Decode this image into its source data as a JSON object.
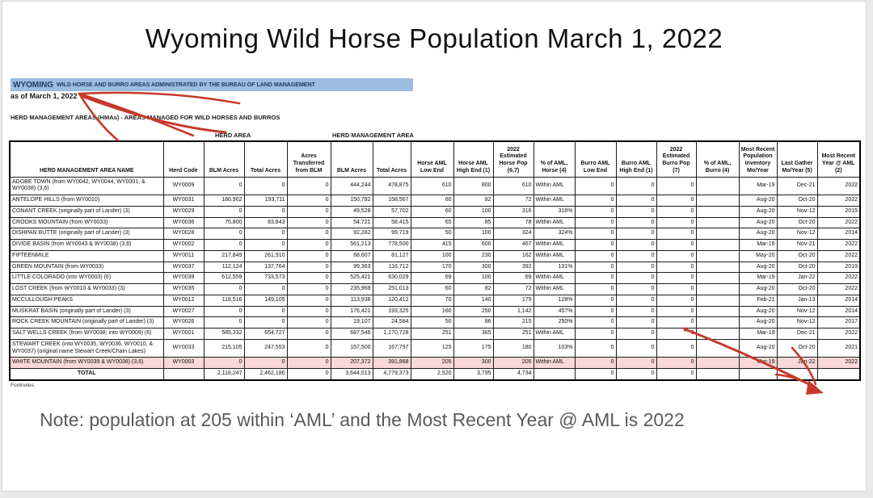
{
  "title": "Wyoming Wild Horse Population March 1, 2022",
  "header_bar": {
    "state": "WYOMING",
    "text": "WILD HORSE AND BURRO AREAS ADMINISTRATED BY THE BUREAU OF LAND MANAGEMENT"
  },
  "as_of": "as of March 1, 2022",
  "hma_line": "HERD MANAGEMENT AREAS (HMAs) - AREAS MANAGED FOR WILD HORSES AND BURROS",
  "group_headers": {
    "herd_area": "HERD AREA",
    "herd_management_area": "HERD MANAGEMENT AREA"
  },
  "table": {
    "columns": [
      "HERD MANAGEMENT AREA NAME",
      "Herd Code",
      "BLM Acres",
      "Total Acres",
      "Acres Transferred from BLM",
      "BLM Acres",
      "Total Acres",
      "Horse AML Low End",
      "Horse AML High End (1)",
      "2022 Estimated Horse Pop (6,7)",
      "% of AML, Horse (4)",
      "Burro AML Low End",
      "Burro AML High End (1)",
      "2022 Estimated Burro Pop (7)",
      "% of AML, Burro (4)",
      "Most Recent Population Inventory Mo/Year",
      "Last Gather Mo/Year (5)",
      "Most Recent Year @ AML (2)"
    ],
    "rows": [
      [
        "ADOBE TOWN (from WY0042, WY0044, WY0001, & WY0038) (3,6)",
        "WY0009",
        "0",
        "0",
        "0",
        "444,244",
        "478,875",
        "610",
        "800",
        "610",
        "Within AML",
        "0",
        "0",
        "0",
        "",
        "Mar-19",
        "Dec-21",
        "2022"
      ],
      [
        "ANTELOPE HILLS (from WY0010)",
        "WY0031",
        "180,962",
        "193,711",
        "0",
        "150,782",
        "158,567",
        "60",
        "82",
        "72",
        "Within AML",
        "0",
        "0",
        "0",
        "",
        "Aug-20",
        "Oct-20",
        "2022"
      ],
      [
        "CONANT CREEK (originally part of Lander) (3)",
        "WY0029",
        "0",
        "0",
        "0",
        "49,528",
        "57,702",
        "60",
        "100",
        "316",
        "316%",
        "0",
        "0",
        "0",
        "",
        "Aug-20",
        "Nov-12",
        "2015"
      ],
      [
        "CROOKS MOUNTAIN (from WY0033)",
        "WY0036",
        "75,800",
        "83,843",
        "0",
        "54,721",
        "58,415",
        "65",
        "85",
        "78",
        "Within AML",
        "0",
        "0",
        "0",
        "",
        "Aug-20",
        "Oct-20",
        "2022"
      ],
      [
        "DISHPAN BUTTE (originally part of Lander) (3)",
        "WY0028",
        "0",
        "0",
        "0",
        "92,282",
        "99,719",
        "50",
        "100",
        "324",
        "324%",
        "0",
        "0",
        "0",
        "",
        "Aug-20",
        "Nov-12",
        "2014"
      ],
      [
        "DIVIDE BASIN (from WY0043 & WY0038) (3,6)",
        "WY0002",
        "0",
        "0",
        "0",
        "561,213",
        "778,500",
        "415",
        "600",
        "467",
        "Within AML",
        "0",
        "0",
        "0",
        "",
        "Mar-19",
        "Nov-21",
        "2022"
      ],
      [
        "FIFTEENMILE",
        "WY0011",
        "217,849",
        "261,910",
        "0",
        "68,607",
        "81,127",
        "100",
        "230",
        "162",
        "Within AML",
        "0",
        "0",
        "0",
        "",
        "May-20",
        "Oct-20",
        "2022"
      ],
      [
        "GREEN MOUNTAIN (from WY0033)",
        "WY0037",
        "112,124",
        "137,764",
        "0",
        "99,363",
        "116,712",
        "170",
        "300",
        "392",
        "131%",
        "0",
        "0",
        "0",
        "",
        "Aug-20",
        "Oct-20",
        "2019"
      ],
      [
        "LITTLE COLORADO (into WY0003) (6)",
        "WY0039",
        "612,559",
        "733,573",
        "0",
        "525,421",
        "630,029",
        "69",
        "100",
        "69",
        "Within AML",
        "0",
        "0",
        "0",
        "",
        "Mar-19",
        "Jan-22",
        "2022"
      ],
      [
        "LOST CREEK (from WY0010 & WY0033) (3)",
        "WY0035",
        "0",
        "0",
        "0",
        "235,968",
        "251,013",
        "60",
        "82",
        "72",
        "Within AML",
        "0",
        "0",
        "0",
        "",
        "Aug-20",
        "Oct-20",
        "2022"
      ],
      [
        "MCCULLOUGH PEAKS",
        "WY0012",
        "118,516",
        "149,105",
        "0",
        "113,938",
        "120,412",
        "70",
        "140",
        "179",
        "128%",
        "0",
        "0",
        "0",
        "",
        "Feb-21",
        "Jan-13",
        "2014"
      ],
      [
        "MUSKRAT BASIN (originally part of Lander) (3)",
        "WY0027",
        "0",
        "0",
        "0",
        "176,421",
        "193,325",
        "160",
        "250",
        "1,142",
        "457%",
        "0",
        "0",
        "0",
        "",
        "Aug-20",
        "Nov-12",
        "2014"
      ],
      [
        "ROCK CREEK MOUNTAIN (originally part of Lander) (3)",
        "WY0026",
        "0",
        "0",
        "0",
        "19,107",
        "24,584",
        "50",
        "86",
        "215",
        "250%",
        "0",
        "0",
        "0",
        "",
        "Aug-20",
        "Nov-12",
        "2017"
      ],
      [
        "SALT WELLS CREEK (from WY0038; into WY0009) (6)",
        "WY0001",
        "585,332",
        "654,727",
        "0",
        "687,546",
        "1,170,728",
        "251",
        "365",
        "251",
        "Within AML",
        "0",
        "0",
        "0",
        "",
        "Mar-19",
        "Dec-21",
        "2022"
      ],
      [
        "STEWART CREEK (into WY0035, WY0036, WY0010, & WY0037) (original name Stewart Creek/Chain Lakes)",
        "WY0033",
        "215,105",
        "247,553",
        "0",
        "157,500",
        "167,797",
        "125",
        "175",
        "180",
        "103%",
        "0",
        "0",
        "0",
        "",
        "Aug-20",
        "Oct-20",
        "2021"
      ],
      [
        "WHITE MOUNTAIN (from WY0039 &  WY0038) (3,6)",
        "WY0003",
        "0",
        "0",
        "0",
        "207,372",
        "391,868",
        "205",
        "300",
        "205",
        "Within AML",
        "0",
        "0",
        "0",
        "",
        "Mar-19",
        "Jan-22",
        "2022"
      ]
    ],
    "total_row": [
      "TOTAL",
      "",
      "2,118,247",
      "2,462,186",
      "0",
      "3,644,013",
      "4,779,373",
      "2,520",
      "3,795",
      "4,734",
      "",
      "0",
      "0",
      "0",
      "",
      "",
      "",
      ""
    ],
    "highlighted_row_index": 15
  },
  "footnotes_label": "Footnotes",
  "note": "Note: population at 205 within ‘AML’ and the Most Recent Year @ AML is 2022",
  "colors": {
    "header_highlight_blue": "#9cbce0",
    "row_highlight_pink": "#f8d9d7",
    "annotation_red": "#c5392b"
  }
}
